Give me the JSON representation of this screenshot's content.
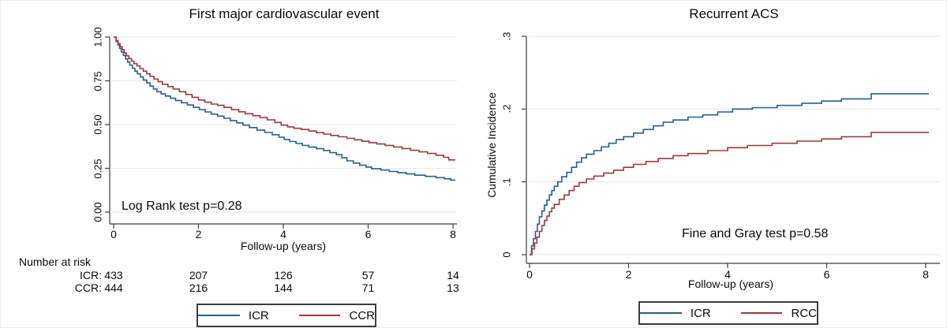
{
  "chart_data": [
    {
      "type": "line",
      "subtype": "kaplan-meier-step",
      "title": "First major cardiovascular event",
      "xlabel": "Follow-up (years)",
      "ylabel": "",
      "annotation": "Log Rank test p=0.28",
      "xlim": [
        0,
        8
      ],
      "ylim": [
        0,
        1
      ],
      "xticks": [
        0,
        2,
        4,
        6,
        8
      ],
      "xtick_labels": [
        "0",
        "2",
        "4",
        "6",
        "8"
      ],
      "yticks": [
        1.0,
        0.75,
        0.5,
        0.25,
        0.0
      ],
      "ytick_labels": [
        "1.00",
        "0.75",
        "0.50",
        "0.25",
        "0.00"
      ],
      "grid": true,
      "legend_position": "bottom",
      "series": [
        {
          "name": "ICR",
          "color": "#24608c",
          "points": [
            [
              0,
              1.0
            ],
            [
              0.06,
              0.975
            ],
            [
              0.1,
              0.955
            ],
            [
              0.14,
              0.935
            ],
            [
              0.18,
              0.915
            ],
            [
              0.23,
              0.895
            ],
            [
              0.28,
              0.875
            ],
            [
              0.33,
              0.857
            ],
            [
              0.38,
              0.84
            ],
            [
              0.44,
              0.822
            ],
            [
              0.5,
              0.805
            ],
            [
              0.56,
              0.79
            ],
            [
              0.63,
              0.772
            ],
            [
              0.7,
              0.755
            ],
            [
              0.78,
              0.738
            ],
            [
              0.86,
              0.72
            ],
            [
              0.94,
              0.703
            ],
            [
              1.02,
              0.688
            ],
            [
              1.12,
              0.675
            ],
            [
              1.22,
              0.663
            ],
            [
              1.34,
              0.65
            ],
            [
              1.46,
              0.638
            ],
            [
              1.6,
              0.625
            ],
            [
              1.74,
              0.612
            ],
            [
              1.88,
              0.598
            ],
            [
              2.02,
              0.585
            ],
            [
              2.16,
              0.572
            ],
            [
              2.3,
              0.56
            ],
            [
              2.45,
              0.548
            ],
            [
              2.6,
              0.536
            ],
            [
              2.75,
              0.523
            ],
            [
              2.9,
              0.51
            ],
            [
              3.05,
              0.497
            ],
            [
              3.2,
              0.483
            ],
            [
              3.38,
              0.468
            ],
            [
              3.56,
              0.455
            ],
            [
              3.74,
              0.442
            ],
            [
              3.9,
              0.428
            ],
            [
              4.02,
              0.415
            ],
            [
              4.15,
              0.403
            ],
            [
              4.3,
              0.392
            ],
            [
              4.45,
              0.381
            ],
            [
              4.6,
              0.371
            ],
            [
              4.78,
              0.362
            ],
            [
              4.95,
              0.352
            ],
            [
              5.1,
              0.34
            ],
            [
              5.25,
              0.328
            ],
            [
              5.38,
              0.31
            ],
            [
              5.5,
              0.293
            ],
            [
              5.65,
              0.28
            ],
            [
              5.8,
              0.268
            ],
            [
              5.95,
              0.257
            ],
            [
              6.08,
              0.248
            ],
            [
              6.3,
              0.24
            ],
            [
              6.5,
              0.232
            ],
            [
              6.7,
              0.225
            ],
            [
              6.9,
              0.218
            ],
            [
              7.1,
              0.211
            ],
            [
              7.35,
              0.204
            ],
            [
              7.6,
              0.197
            ],
            [
              7.8,
              0.19
            ],
            [
              7.95,
              0.183
            ],
            [
              8.05,
              0.183
            ]
          ]
        },
        {
          "name": "CCR",
          "color": "#9a3a40",
          "points": [
            [
              0,
              1.0
            ],
            [
              0.06,
              0.98
            ],
            [
              0.1,
              0.962
            ],
            [
              0.15,
              0.945
            ],
            [
              0.2,
              0.928
            ],
            [
              0.25,
              0.91
            ],
            [
              0.3,
              0.893
            ],
            [
              0.36,
              0.877
            ],
            [
              0.42,
              0.862
            ],
            [
              0.48,
              0.848
            ],
            [
              0.55,
              0.835
            ],
            [
              0.62,
              0.82
            ],
            [
              0.7,
              0.805
            ],
            [
              0.78,
              0.79
            ],
            [
              0.86,
              0.775
            ],
            [
              0.95,
              0.76
            ],
            [
              1.05,
              0.745
            ],
            [
              1.15,
              0.73
            ],
            [
              1.28,
              0.717
            ],
            [
              1.4,
              0.703
            ],
            [
              1.55,
              0.688
            ],
            [
              1.7,
              0.672
            ],
            [
              1.85,
              0.656
            ],
            [
              2.0,
              0.64
            ],
            [
              2.15,
              0.628
            ],
            [
              2.3,
              0.617
            ],
            [
              2.45,
              0.61
            ],
            [
              2.6,
              0.598
            ],
            [
              2.78,
              0.585
            ],
            [
              2.95,
              0.573
            ],
            [
              3.1,
              0.562
            ],
            [
              3.28,
              0.551
            ],
            [
              3.45,
              0.54
            ],
            [
              3.62,
              0.527
            ],
            [
              3.8,
              0.512
            ],
            [
              3.95,
              0.497
            ],
            [
              4.1,
              0.487
            ],
            [
              4.25,
              0.479
            ],
            [
              4.42,
              0.472
            ],
            [
              4.6,
              0.463
            ],
            [
              4.78,
              0.454
            ],
            [
              4.95,
              0.446
            ],
            [
              5.12,
              0.438
            ],
            [
              5.3,
              0.43
            ],
            [
              5.5,
              0.421
            ],
            [
              5.68,
              0.413
            ],
            [
              5.85,
              0.405
            ],
            [
              6.02,
              0.397
            ],
            [
              6.2,
              0.389
            ],
            [
              6.4,
              0.381
            ],
            [
              6.6,
              0.372
            ],
            [
              6.8,
              0.363
            ],
            [
              7.0,
              0.353
            ],
            [
              7.2,
              0.344
            ],
            [
              7.4,
              0.335
            ],
            [
              7.6,
              0.325
            ],
            [
              7.78,
              0.313
            ],
            [
              7.9,
              0.298
            ],
            [
              8.05,
              0.298
            ]
          ]
        }
      ],
      "number_at_risk": {
        "heading": "Number at risk",
        "rows": [
          {
            "label": "ICR:",
            "values": [
              "433",
              "207",
              "126",
              "57",
              "14"
            ]
          },
          {
            "label": "CCR:",
            "values": [
              "444",
              "216",
              "144",
              "71",
              "13"
            ]
          }
        ]
      },
      "legend": [
        {
          "label": "ICR",
          "color": "#24608c"
        },
        {
          "label": "CCR",
          "color": "#9a3a40"
        }
      ]
    },
    {
      "type": "line",
      "subtype": "cumulative-incidence-step",
      "title": "Recurrent ACS",
      "xlabel": "Follow-up (years)",
      "ylabel": "Cumulative Incidence",
      "annotation": "Fine and Gray test p=0.58",
      "xlim": [
        0,
        8
      ],
      "ylim": [
        0,
        0.3
      ],
      "xticks": [
        0,
        2,
        4,
        6,
        8
      ],
      "xtick_labels": [
        "0",
        "2",
        "4",
        "6",
        "8"
      ],
      "yticks": [
        0.3,
        0.2,
        0.1,
        0.0
      ],
      "ytick_labels": [
        ".3",
        ".2",
        ".1",
        "0"
      ],
      "grid": true,
      "legend_position": "bottom",
      "series": [
        {
          "name": "ICR",
          "color": "#24608c",
          "points": [
            [
              0,
              0
            ],
            [
              0.04,
              0.012
            ],
            [
              0.08,
              0.022
            ],
            [
              0.12,
              0.032
            ],
            [
              0.16,
              0.042
            ],
            [
              0.2,
              0.052
            ],
            [
              0.25,
              0.06
            ],
            [
              0.3,
              0.068
            ],
            [
              0.35,
              0.075
            ],
            [
              0.4,
              0.082
            ],
            [
              0.45,
              0.088
            ],
            [
              0.5,
              0.094
            ],
            [
              0.57,
              0.1
            ],
            [
              0.65,
              0.107
            ],
            [
              0.75,
              0.113
            ],
            [
              0.85,
              0.12
            ],
            [
              0.95,
              0.127
            ],
            [
              1.05,
              0.133
            ],
            [
              1.15,
              0.138
            ],
            [
              1.3,
              0.143
            ],
            [
              1.45,
              0.148
            ],
            [
              1.6,
              0.153
            ],
            [
              1.75,
              0.158
            ],
            [
              1.9,
              0.162
            ],
            [
              2.1,
              0.167
            ],
            [
              2.3,
              0.172
            ],
            [
              2.5,
              0.177
            ],
            [
              2.7,
              0.182
            ],
            [
              2.9,
              0.185
            ],
            [
              3.2,
              0.189
            ],
            [
              3.5,
              0.192
            ],
            [
              3.8,
              0.196
            ],
            [
              4.1,
              0.2
            ],
            [
              4.5,
              0.202
            ],
            [
              5.0,
              0.205
            ],
            [
              5.5,
              0.208
            ],
            [
              5.9,
              0.211
            ],
            [
              6.3,
              0.214
            ],
            [
              6.9,
              0.221
            ],
            [
              8.05,
              0.221
            ]
          ]
        },
        {
          "name": "RCC",
          "color": "#9a3a40",
          "points": [
            [
              0,
              0
            ],
            [
              0.05,
              0.008
            ],
            [
              0.1,
              0.016
            ],
            [
              0.15,
              0.024
            ],
            [
              0.2,
              0.032
            ],
            [
              0.25,
              0.04
            ],
            [
              0.3,
              0.047
            ],
            [
              0.35,
              0.053
            ],
            [
              0.4,
              0.059
            ],
            [
              0.45,
              0.064
            ],
            [
              0.5,
              0.069
            ],
            [
              0.6,
              0.076
            ],
            [
              0.7,
              0.082
            ],
            [
              0.8,
              0.088
            ],
            [
              0.9,
              0.094
            ],
            [
              1.0,
              0.099
            ],
            [
              1.15,
              0.104
            ],
            [
              1.3,
              0.108
            ],
            [
              1.5,
              0.112
            ],
            [
              1.7,
              0.116
            ],
            [
              1.9,
              0.12
            ],
            [
              2.1,
              0.124
            ],
            [
              2.35,
              0.128
            ],
            [
              2.6,
              0.132
            ],
            [
              2.9,
              0.136
            ],
            [
              3.2,
              0.139
            ],
            [
              3.6,
              0.143
            ],
            [
              4.0,
              0.147
            ],
            [
              4.4,
              0.15
            ],
            [
              4.9,
              0.153
            ],
            [
              5.4,
              0.156
            ],
            [
              5.9,
              0.159
            ],
            [
              6.3,
              0.162
            ],
            [
              6.9,
              0.168
            ],
            [
              8.05,
              0.168
            ]
          ]
        }
      ],
      "legend": [
        {
          "label": "ICR",
          "color": "#24608c"
        },
        {
          "label": "RCC",
          "color": "#9a3a40"
        }
      ]
    }
  ],
  "style": {
    "grid_color": "#e2eaf0",
    "axis_color": "#3d3d3d"
  }
}
